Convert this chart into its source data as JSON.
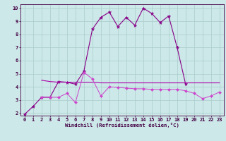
{
  "xlabel": "Windchill (Refroidissement éolien,°C)",
  "background_color": "#cce8e8",
  "grid_color": "#aacccc",
  "xmin": -0.5,
  "xmax": 23.5,
  "ymin": 1.8,
  "ymax": 10.3,
  "xticks": [
    0,
    1,
    2,
    3,
    4,
    5,
    6,
    7,
    8,
    9,
    10,
    11,
    12,
    13,
    14,
    15,
    16,
    17,
    18,
    19,
    20,
    21,
    22,
    23
  ],
  "yticks": [
    2,
    3,
    4,
    5,
    6,
    7,
    8,
    9,
    10
  ],
  "wind_x": [
    0,
    1,
    2,
    3,
    4,
    5,
    6,
    7,
    8,
    9,
    10,
    11,
    12,
    13,
    14,
    15,
    16,
    17,
    18,
    19
  ],
  "wind_y": [
    1.9,
    2.5,
    3.2,
    3.2,
    4.4,
    4.35,
    4.2,
    5.2,
    8.4,
    9.3,
    9.7,
    8.6,
    9.3,
    8.7,
    10.0,
    9.6,
    8.9,
    9.4,
    7.0,
    4.2
  ],
  "upper_x": [
    2,
    3,
    4,
    5,
    6,
    7,
    8,
    9,
    10,
    11,
    12,
    13,
    14,
    15,
    16,
    17,
    18,
    19,
    20,
    21,
    22,
    23
  ],
  "upper_y": [
    4.5,
    4.4,
    4.35,
    4.35,
    4.35,
    4.35,
    4.35,
    4.3,
    4.3,
    4.3,
    4.3,
    4.3,
    4.3,
    4.3,
    4.3,
    4.3,
    4.3,
    4.3,
    4.3,
    4.3,
    4.3,
    4.3
  ],
  "lower_x": [
    2,
    3,
    4,
    5,
    6,
    7,
    8,
    9,
    10,
    11,
    12,
    13,
    14,
    15,
    16,
    17,
    18,
    19,
    20,
    21,
    22,
    23
  ],
  "lower_y": [
    3.2,
    3.2,
    3.2,
    3.5,
    2.8,
    5.1,
    4.6,
    3.3,
    4.0,
    3.95,
    3.9,
    3.85,
    3.85,
    3.8,
    3.8,
    3.8,
    3.8,
    3.7,
    3.5,
    3.1,
    3.3,
    3.6
  ],
  "color1": "#880088",
  "color2": "#aa00aa",
  "color3": "#cc44cc"
}
